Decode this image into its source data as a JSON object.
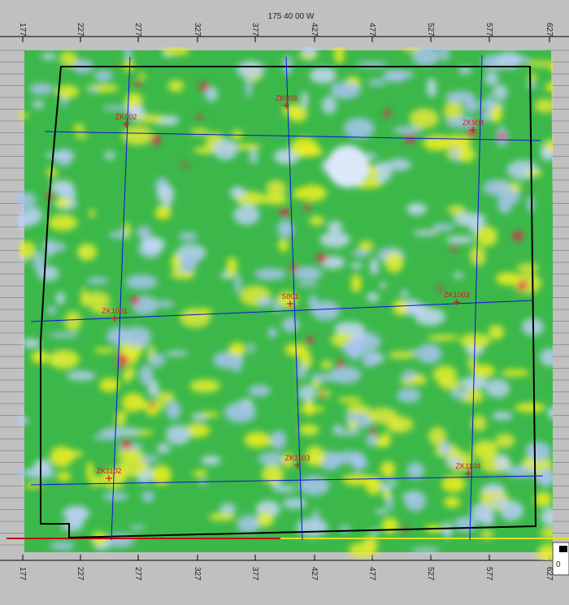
{
  "header": {
    "title": "175 40 00 W"
  },
  "top_ticks": [
    "177",
    "227",
    "277",
    "327",
    "377",
    "427",
    "477",
    "527",
    "577",
    "627"
  ],
  "bottom_ticks": [
    "177",
    "227",
    "277",
    "327",
    "377",
    "427",
    "477",
    "527",
    "577",
    "627"
  ],
  "wells": [
    {
      "label": "ZK902"
    },
    {
      "label": "ZK903"
    },
    {
      "label": "ZK904"
    },
    {
      "label": "ZK1001"
    },
    {
      "label": "S801"
    },
    {
      "label": "ZK1003"
    },
    {
      "label": "ZK1102"
    },
    {
      "label": "ZK1103"
    },
    {
      "label": "ZK1104"
    }
  ],
  "corner_label": "0"
}
